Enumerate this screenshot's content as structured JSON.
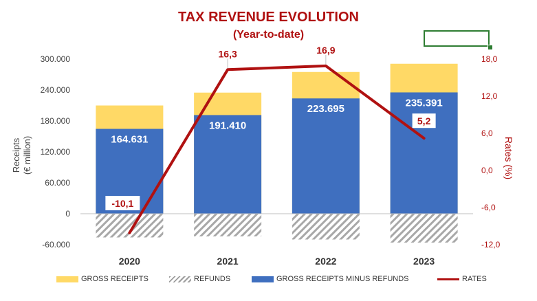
{
  "title": "TAX REVENUE EVOLUTION",
  "subtitle": "(Year-to-date)",
  "chart_data": {
    "type": "bar",
    "categories": [
      "2020",
      "2021",
      "2022",
      "2023"
    ],
    "series": [
      {
        "name": "GROSS RECEIPTS",
        "kind": "stacked-bar",
        "values": [
          210000,
          235000,
          275000,
          291000
        ],
        "color": "#ffd966"
      },
      {
        "name": "REFUNDS",
        "kind": "bar-negative",
        "values": [
          -46000,
          -44000,
          -50000,
          -56000
        ],
        "color": "#9e9e9e"
      },
      {
        "name": "GROSS RECEIPTS MINUS REFUNDS",
        "kind": "bar",
        "values": [
          164631,
          191410,
          223695,
          235391
        ],
        "labels": [
          "164.631",
          "191.410",
          "223.695",
          "235.391"
        ],
        "color": "#3f6fbf"
      },
      {
        "name": "RATES",
        "kind": "line",
        "axis": "right",
        "values": [
          -10.1,
          16.3,
          16.9,
          5.2
        ],
        "labels": [
          "-10,1",
          "16,3",
          "16,9",
          "5,2"
        ],
        "color": "#b01111"
      }
    ],
    "ylabel": "Receipts\n(€ million)",
    "y2label": "Rates (%)",
    "ylim": [
      -60000,
      300000
    ],
    "y2lim": [
      -12,
      18
    ],
    "yticks": [
      "-60.000",
      "0",
      "60.000",
      "120.000",
      "180.000",
      "240.000",
      "300.000"
    ],
    "y2ticks": [
      "-12,0",
      "-6,0",
      "0,0",
      "6,0",
      "12,0",
      "18,0"
    ],
    "legend_position": "bottom",
    "grid": false
  },
  "legend": {
    "gross": "GROSS RECEIPTS",
    "refunds": "REFUNDS",
    "net": "GROSS RECEIPTS MINUS REFUNDS",
    "rates": "RATES"
  },
  "axis_titles": {
    "left_line1": "Receipts",
    "left_line2": "(€ million)",
    "right": "Rates (%)"
  }
}
